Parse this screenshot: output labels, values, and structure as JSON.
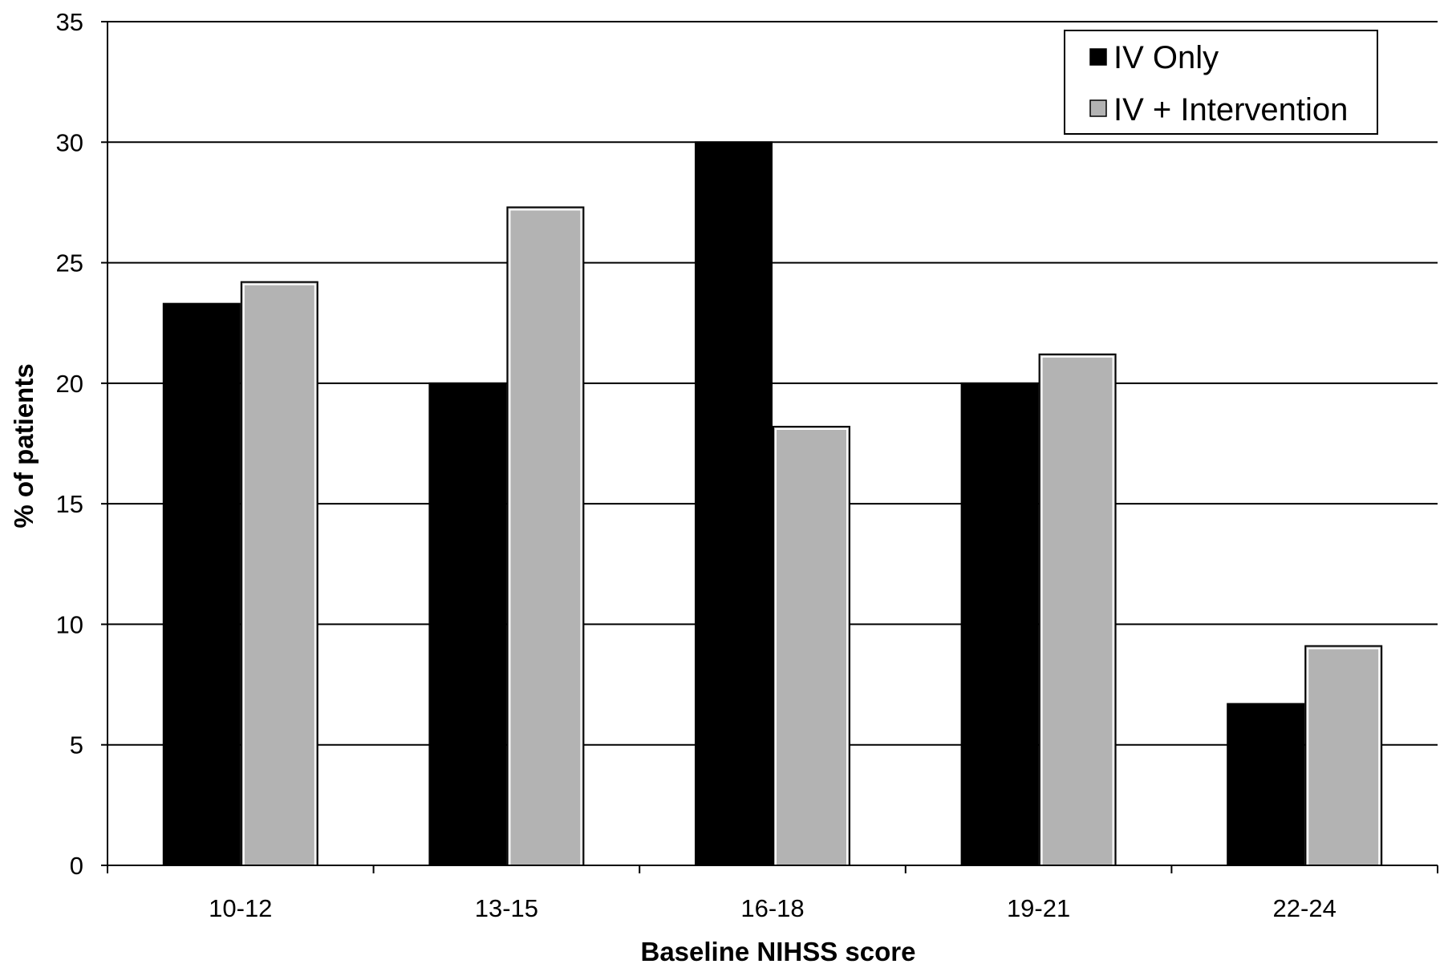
{
  "chart_data": {
    "type": "bar",
    "title": "",
    "xlabel": "Baseline NIHSS score",
    "ylabel": "% of patients",
    "ylim": [
      0,
      35
    ],
    "yticks": [
      0,
      5,
      10,
      15,
      20,
      25,
      30,
      35
    ],
    "grid": true,
    "legend_position": "top-right",
    "categories": [
      "10-12",
      "13-15",
      "16-18",
      "19-21",
      "22-24"
    ],
    "series": [
      {
        "name": "IV Only",
        "color": "#000000",
        "values": [
          23.3,
          20.0,
          30.0,
          20.0,
          6.7
        ]
      },
      {
        "name": "IV + Intervention",
        "color": "#b3b3b3",
        "values": [
          24.2,
          27.3,
          18.2,
          21.2,
          9.1
        ]
      }
    ]
  }
}
